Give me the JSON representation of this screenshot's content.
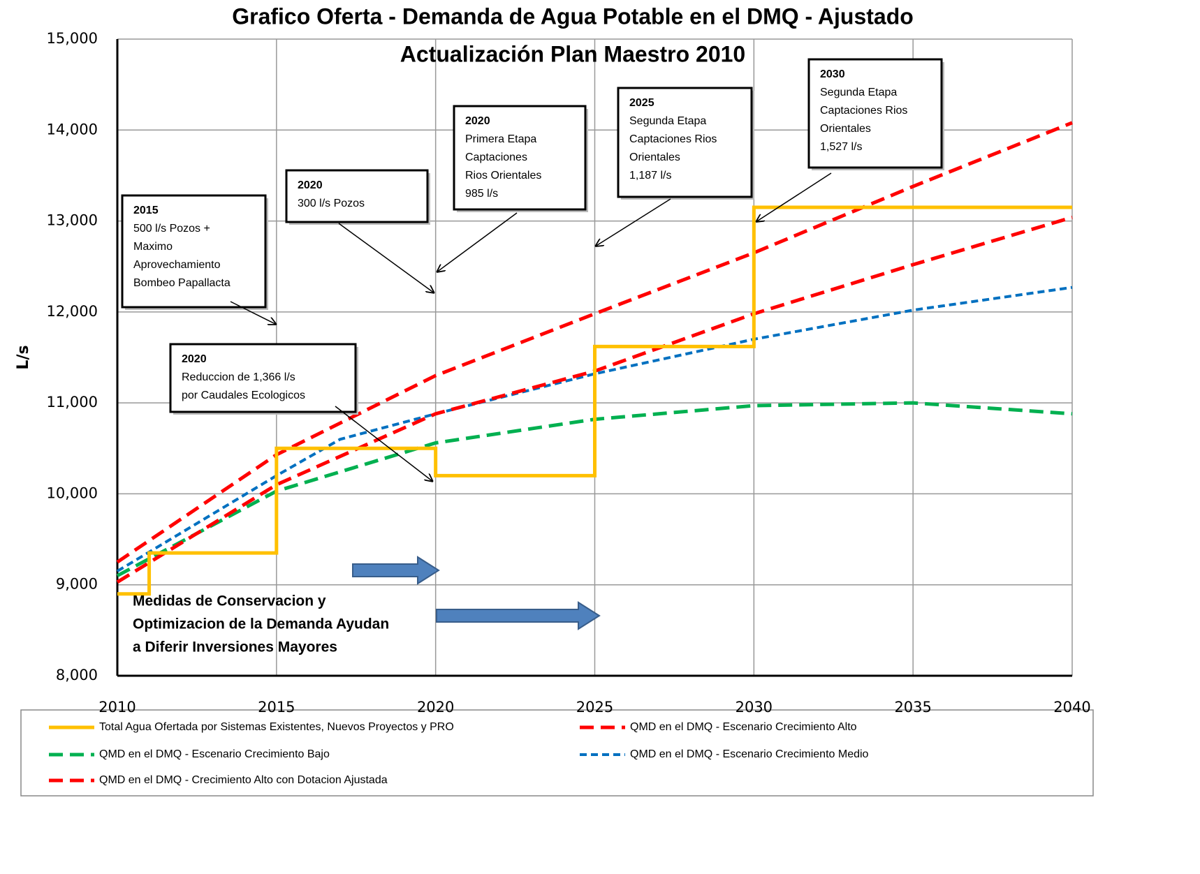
{
  "chart_data": {
    "type": "line",
    "title": "Grafico Oferta - Demanda  de Agua Potable en el DMQ - Ajustado",
    "subtitle": "Actualización Plan Maestro 2010",
    "y_label": "L/s",
    "xlim": [
      2010,
      2040
    ],
    "xticks": [
      2010,
      2015,
      2020,
      2025,
      2030,
      2035,
      2040
    ],
    "ylim": [
      8000,
      15000
    ],
    "yticks": [
      {
        "value": 8000,
        "label": "8,000"
      },
      {
        "value": 9000,
        "label": "9,000"
      },
      {
        "value": 10000,
        "label": "10,000"
      },
      {
        "value": 11000,
        "label": "11,000"
      },
      {
        "value": 12000,
        "label": "12,000"
      },
      {
        "value": 13000,
        "label": "13,000"
      },
      {
        "value": 14000,
        "label": "14,000"
      },
      {
        "value": 15000,
        "label": "15,000"
      }
    ],
    "grid": true,
    "series": [
      {
        "name": "Total  Agua  Ofertada por Sistemas Existentes, Nuevos Proyectos  y PRO",
        "color": "#ffc000",
        "dash": "solid",
        "x": [
          2010,
          2011,
          2011,
          2015,
          2015,
          2020,
          2020,
          2025,
          2025,
          2030,
          2030,
          2040
        ],
        "values": [
          8900,
          8900,
          9350,
          9350,
          10500,
          10500,
          10200,
          10200,
          11620,
          11620,
          13150,
          13150
        ]
      },
      {
        "name": "QMD en el DMQ -  Escenario Crecimiento Alto",
        "color": "#ff0000",
        "dash": "long",
        "x": [
          2010,
          2015,
          2020,
          2025,
          2030,
          2035,
          2040
        ],
        "values": [
          9250,
          10430,
          11300,
          11980,
          12650,
          13380,
          14080
        ]
      },
      {
        "name": "QMD en el DMQ -  Escenario Crecimiento Bajo",
        "color": "#00b050",
        "dash": "long",
        "x": [
          2010,
          2015,
          2020,
          2025,
          2030,
          2035,
          2040
        ],
        "values": [
          9100,
          10030,
          10560,
          10820,
          10970,
          11000,
          10880
        ]
      },
      {
        "name": "QMD en el DMQ -  Escenario Crecimiento Medio",
        "color": "#0070c0",
        "dash": "short",
        "x": [
          2010,
          2015,
          2017,
          2020,
          2025,
          2030,
          2035,
          2040
        ],
        "values": [
          9150,
          10200,
          10600,
          10880,
          11320,
          11700,
          12020,
          12270
        ]
      },
      {
        "name": "QMD en el DMQ -  Crecimiento Alto con Dotacion  Ajustada",
        "color": "#ff0000",
        "dash": "long",
        "x": [
          2010,
          2015,
          2020,
          2025,
          2030,
          2035,
          2040
        ],
        "values": [
          9030,
          10100,
          10880,
          11350,
          11980,
          12520,
          13040
        ]
      }
    ],
    "annotations": [
      {
        "lines": [
          "2015",
          "500 l/s Pozos +",
          "Maximo",
          "Aprovechamiento",
          "Bombeo Papallacta"
        ]
      },
      {
        "lines": [
          "2020",
          "300 l/s Pozos"
        ]
      },
      {
        "lines": [
          "2020",
          "Primera Etapa",
          "Captaciones",
          "Rios Orientales",
          "985  l/s"
        ]
      },
      {
        "lines": [
          "2025",
          "Segunda Etapa",
          "Captaciones Rios",
          "Orientales",
          "1,187  l/s"
        ]
      },
      {
        "lines": [
          "2030",
          "Segunda Etapa",
          "Captaciones Rios",
          "Orientales",
          "1,527  l/s"
        ]
      },
      {
        "lines": [
          "2020",
          "Reduccion de 1,366 l/s",
          "por Caudales Ecologicos"
        ]
      }
    ],
    "note_lines": [
      "Medidas de Conservacion y",
      "Optimizacion de la Demanda Ayudan",
      "a Diferir Inversiones Mayores"
    ]
  }
}
